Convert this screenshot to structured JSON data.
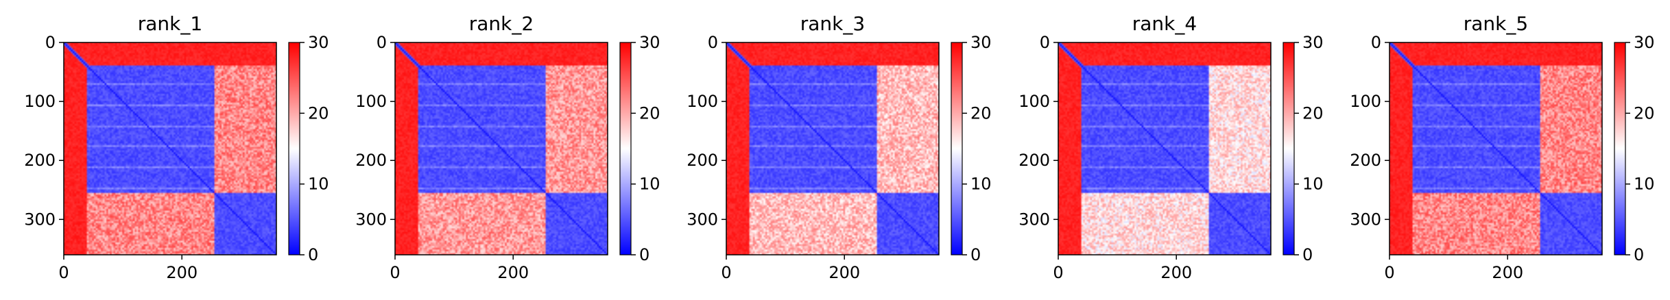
{
  "chart_data": [
    {
      "type": "heatmap",
      "title": "rank_1",
      "matrix_size": 360,
      "xlim": [
        0,
        360
      ],
      "ylim": [
        360,
        0
      ],
      "xticks": [
        0,
        200
      ],
      "yticks": [
        0,
        100,
        200,
        300
      ],
      "colorbar": {
        "range": [
          0,
          30
        ],
        "ticks": [
          0,
          10,
          20,
          30
        ],
        "colors": [
          "#0000ff",
          "#ffffff",
          "#ff0000"
        ]
      },
      "domains": [
        {
          "name": "",
          "start": 0,
          "end": 40
        },
        {
          "name": "",
          "start": 40,
          "end": 255
        },
        {
          "name": "",
          "start": 255,
          "end": 360
        }
      ],
      "intra_domain_value": 3,
      "inter_domain_value": 22,
      "n_terminal_value": 28
    },
    {
      "type": "heatmap",
      "title": "rank_2",
      "matrix_size": 360,
      "xlim": [
        0,
        360
      ],
      "ylim": [
        360,
        0
      ],
      "xticks": [
        0,
        200
      ],
      "yticks": [
        0,
        100,
        200,
        300
      ],
      "colorbar": {
        "range": [
          0,
          30
        ],
        "ticks": [
          0,
          10,
          20,
          30
        ],
        "colors": [
          "#0000ff",
          "#ffffff",
          "#ff0000"
        ]
      },
      "domains": [
        {
          "name": "",
          "start": 0,
          "end": 40
        },
        {
          "name": "",
          "start": 40,
          "end": 255
        },
        {
          "name": "",
          "start": 255,
          "end": 360
        }
      ],
      "intra_domain_value": 3,
      "inter_domain_value": 21,
      "n_terminal_value": 28
    },
    {
      "type": "heatmap",
      "title": "rank_3",
      "matrix_size": 360,
      "xlim": [
        0,
        360
      ],
      "ylim": [
        360,
        0
      ],
      "xticks": [
        0,
        200
      ],
      "yticks": [
        0,
        100,
        200,
        300
      ],
      "colorbar": {
        "range": [
          0,
          30
        ],
        "ticks": [
          0,
          10,
          20,
          30
        ],
        "colors": [
          "#0000ff",
          "#ffffff",
          "#ff0000"
        ]
      },
      "domains": [
        {
          "name": "",
          "start": 0,
          "end": 40
        },
        {
          "name": "",
          "start": 40,
          "end": 255
        },
        {
          "name": "",
          "start": 255,
          "end": 360
        }
      ],
      "intra_domain_value": 3,
      "inter_domain_value": 19,
      "n_terminal_value": 28
    },
    {
      "type": "heatmap",
      "title": "rank_4",
      "matrix_size": 360,
      "xlim": [
        0,
        360
      ],
      "ylim": [
        360,
        0
      ],
      "xticks": [
        0,
        200
      ],
      "yticks": [
        0,
        100,
        200,
        300
      ],
      "colorbar": {
        "range": [
          0,
          30
        ],
        "ticks": [
          0,
          10,
          20,
          30
        ],
        "colors": [
          "#0000ff",
          "#ffffff",
          "#ff0000"
        ]
      },
      "domains": [
        {
          "name": "",
          "start": 0,
          "end": 40
        },
        {
          "name": "",
          "start": 40,
          "end": 255
        },
        {
          "name": "",
          "start": 255,
          "end": 360
        }
      ],
      "intra_domain_value": 3,
      "inter_domain_value": 17,
      "n_terminal_value": 28
    },
    {
      "type": "heatmap",
      "title": "rank_5",
      "matrix_size": 360,
      "xlim": [
        0,
        360
      ],
      "ylim": [
        360,
        0
      ],
      "xticks": [
        0,
        200
      ],
      "yticks": [
        0,
        100,
        200,
        300
      ],
      "colorbar": {
        "range": [
          0,
          30
        ],
        "ticks": [
          0,
          10,
          20,
          30
        ],
        "colors": [
          "#0000ff",
          "#ffffff",
          "#ff0000"
        ]
      },
      "domains": [
        {
          "name": "",
          "start": 0,
          "end": 40
        },
        {
          "name": "",
          "start": 40,
          "end": 255
        },
        {
          "name": "",
          "start": 255,
          "end": 360
        }
      ],
      "intra_domain_value": 3,
      "inter_domain_value": 22,
      "n_terminal_value": 28
    }
  ]
}
